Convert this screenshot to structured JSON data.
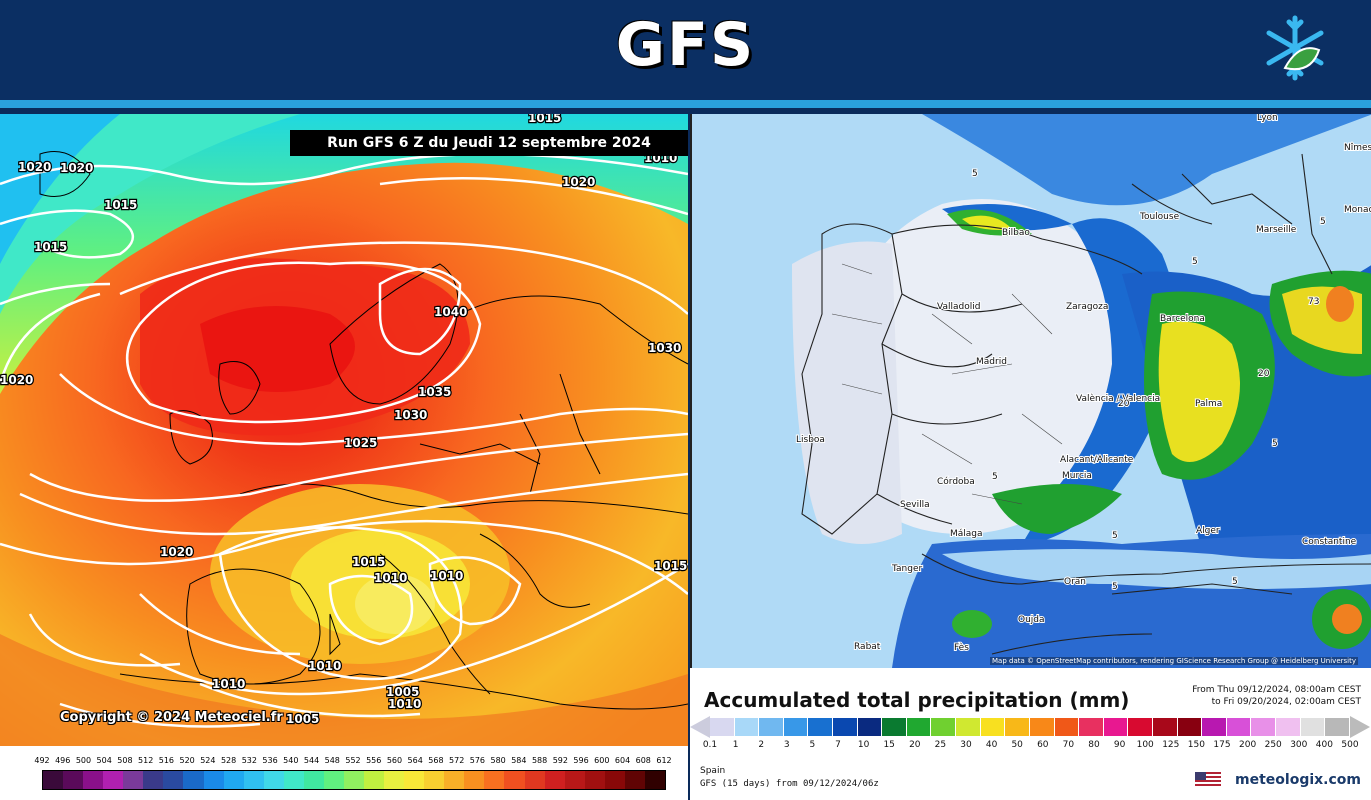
{
  "header": {
    "title": "GFS"
  },
  "left_map": {
    "run_label": "Run GFS 6 Z du Jeudi 12 septembre 2024",
    "copyright": "Copyright © 2024 Meteociel.fr",
    "isobar_labels": [
      "1015",
      "1010",
      "1020",
      "1020",
      "1015",
      "1015",
      "1020",
      "1040",
      "1035",
      "1030",
      "1025",
      "1030",
      "1020",
      "1020",
      "1015",
      "1010",
      "1010",
      "1015",
      "1010",
      "1010",
      "1005",
      "1010",
      "1005"
    ],
    "legend_labels": [
      "492",
      "496",
      "500",
      "504",
      "508",
      "512",
      "516",
      "520",
      "524",
      "528",
      "532",
      "536",
      "540",
      "544",
      "548",
      "552",
      "556",
      "560",
      "564",
      "568",
      "572",
      "576",
      "580",
      "584",
      "588",
      "592",
      "596",
      "600",
      "604",
      "608",
      "612"
    ],
    "legend_colors": [
      "#3a0a3a",
      "#5a0a5a",
      "#8a108a",
      "#b020b0",
      "#7a3a9a",
      "#3a3a8a",
      "#2a4aa0",
      "#1a6ac8",
      "#1a8ae8",
      "#20a8f0",
      "#30c0f0",
      "#40d8e8",
      "#40e8c8",
      "#40e8a0",
      "#60f080",
      "#90f060",
      "#c0f040",
      "#e8f040",
      "#f8e838",
      "#f8d030",
      "#f8b028",
      "#f89020",
      "#f87020",
      "#f05020",
      "#e03820",
      "#d02020",
      "#b81818",
      "#a01010",
      "#880808",
      "#600404",
      "#300000"
    ]
  },
  "right_map": {
    "attribution": "Map data © OpenStreetMap contributors, rendering GIScience Research Group @ Heidelberg University",
    "cities": [
      "Lyon",
      "Nîmes",
      "Toulouse",
      "Marseille",
      "Monaco",
      "Bilbao",
      "Valladolid",
      "Zaragoza",
      "Barcelona",
      "Madrid",
      "Lisboa",
      "València / Valencia",
      "Palma",
      "Alacant/Alicante",
      "Murcia",
      "Córdoba",
      "Sevilla",
      "Málaga",
      "Alger",
      "Constantine",
      "Tanger",
      "Oran",
      "Oujda",
      "Rabat",
      "Fès"
    ],
    "numbers": [
      "5",
      "5",
      "5",
      "5",
      "5",
      "5",
      "5",
      "20",
      "20",
      "73",
      "5"
    ]
  },
  "right_legend": {
    "title": "Accumulated total precipitation (mm)",
    "from_line1": "From Thu 09/12/2024, 08:00am CEST",
    "from_line2": "to Fri 09/20/2024, 02:00am CEST",
    "labels": [
      "0.1",
      "1",
      "2",
      "3",
      "5",
      "7",
      "10",
      "15",
      "20",
      "25",
      "30",
      "40",
      "50",
      "60",
      "70",
      "80",
      "90",
      "100",
      "125",
      "150",
      "175",
      "200",
      "250",
      "300",
      "400",
      "500"
    ],
    "colors": [
      "#d8d8f0",
      "#a8d8f8",
      "#70b8f0",
      "#3898e8",
      "#1870d0",
      "#0a48b0",
      "#0a2a80",
      "#0a7a30",
      "#20a830",
      "#70d030",
      "#d0e830",
      "#f8e020",
      "#f8b818",
      "#f88818",
      "#f05818",
      "#e83060",
      "#e81890",
      "#d80a30",
      "#a8081a",
      "#880010",
      "#b818b0",
      "#d850d8",
      "#e890e8",
      "#f0c0f0",
      "#e0e0e0",
      "#b8b8b8"
    ],
    "region": "Spain",
    "source": "GFS (15 days) from 09/12/2024/06z",
    "brand": "meteologix.com"
  }
}
